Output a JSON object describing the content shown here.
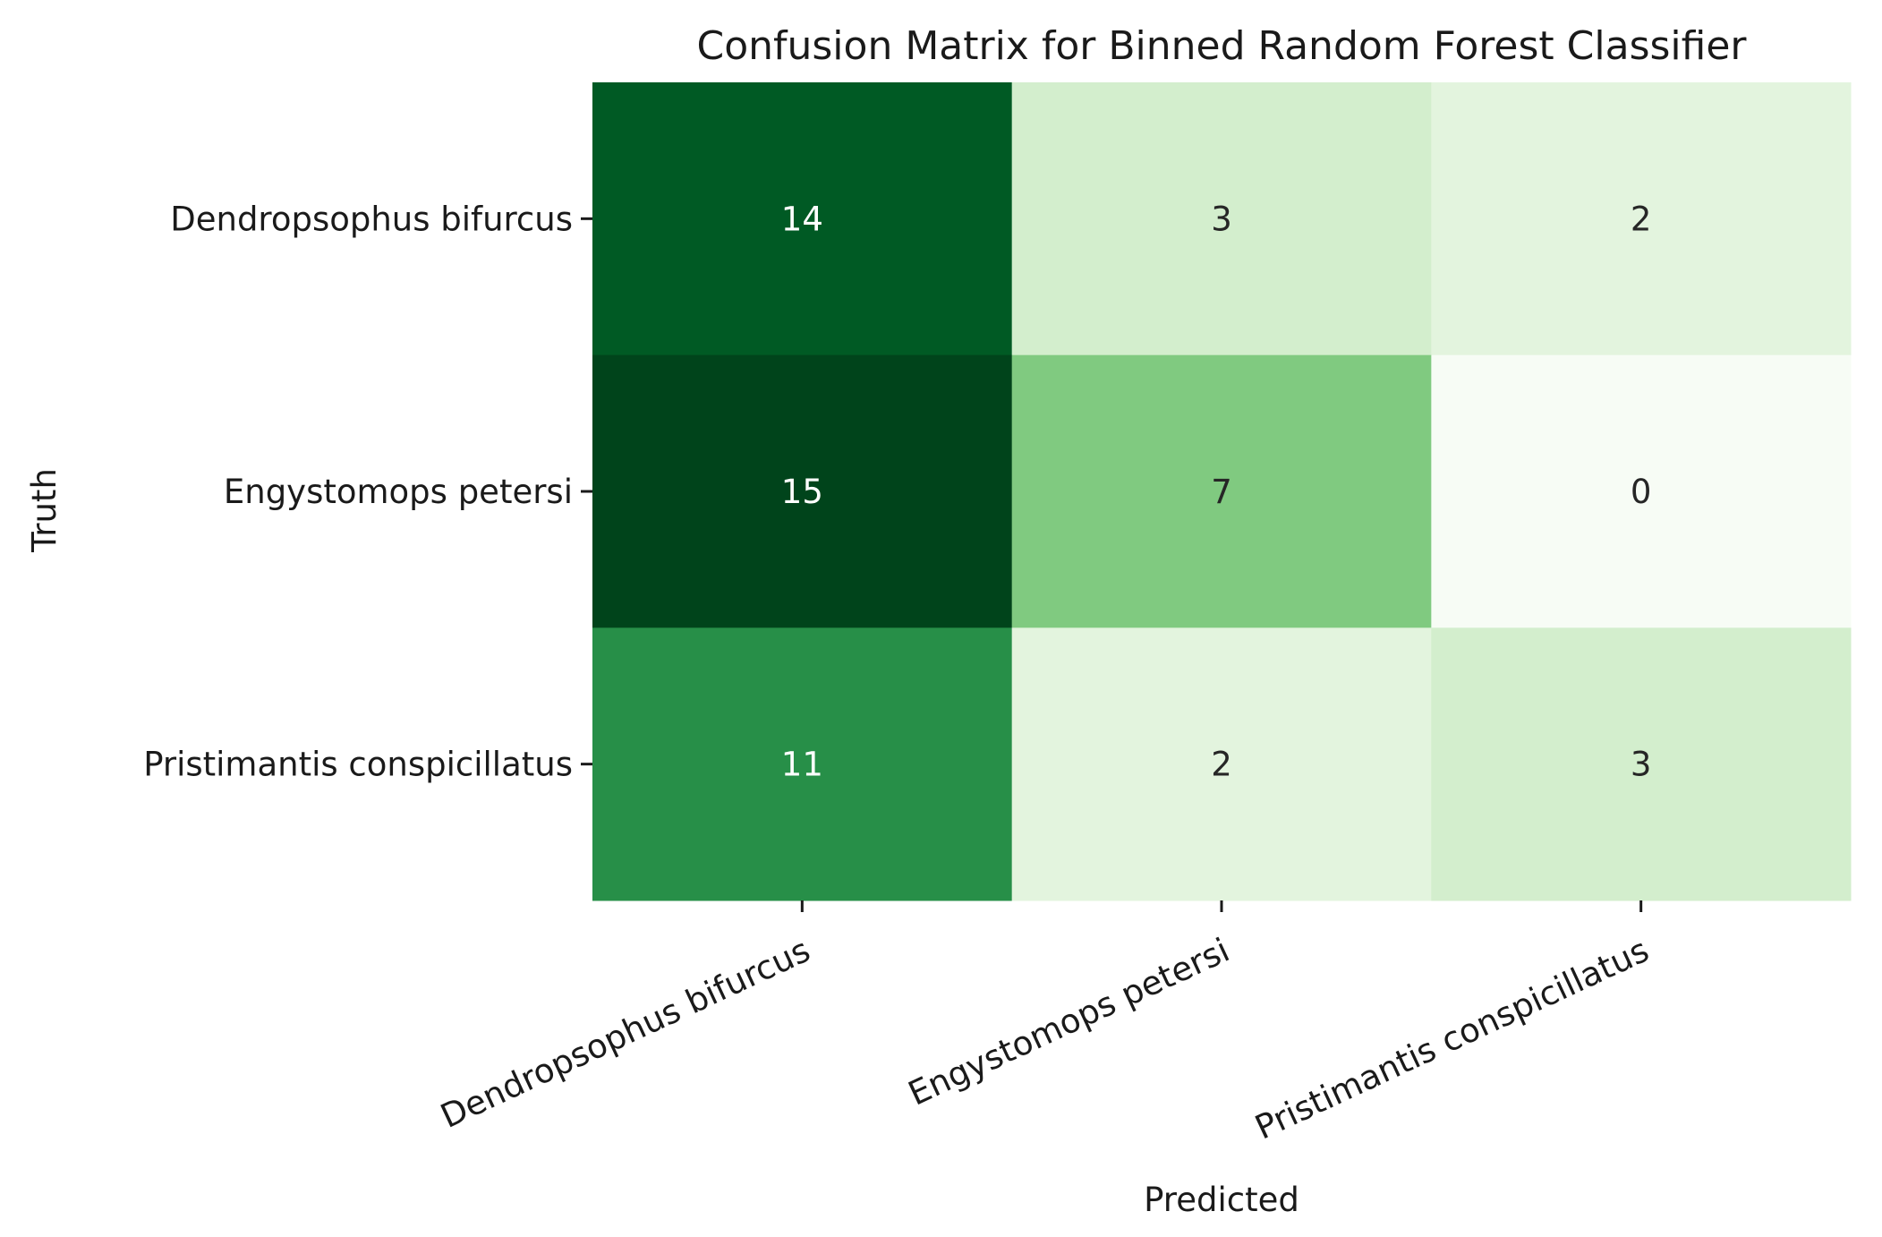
{
  "chart_data": {
    "type": "heatmap",
    "title": "Confusion Matrix for Binned Random Forest Classifier",
    "xlabel": "Predicted",
    "ylabel": "Truth",
    "x_categories": [
      "Dendropsophus bifurcus",
      "Engystomops petersi",
      "Pristimantis conspicillatus"
    ],
    "y_categories": [
      "Dendropsophus bifurcus",
      "Engystomops petersi",
      "Pristimantis conspicillatus"
    ],
    "values": [
      [
        14,
        3,
        2
      ],
      [
        15,
        7,
        0
      ],
      [
        11,
        2,
        3
      ]
    ],
    "value_range": [
      0,
      15
    ],
    "colormap": "Greens",
    "colorbar": false,
    "grid": false
  }
}
